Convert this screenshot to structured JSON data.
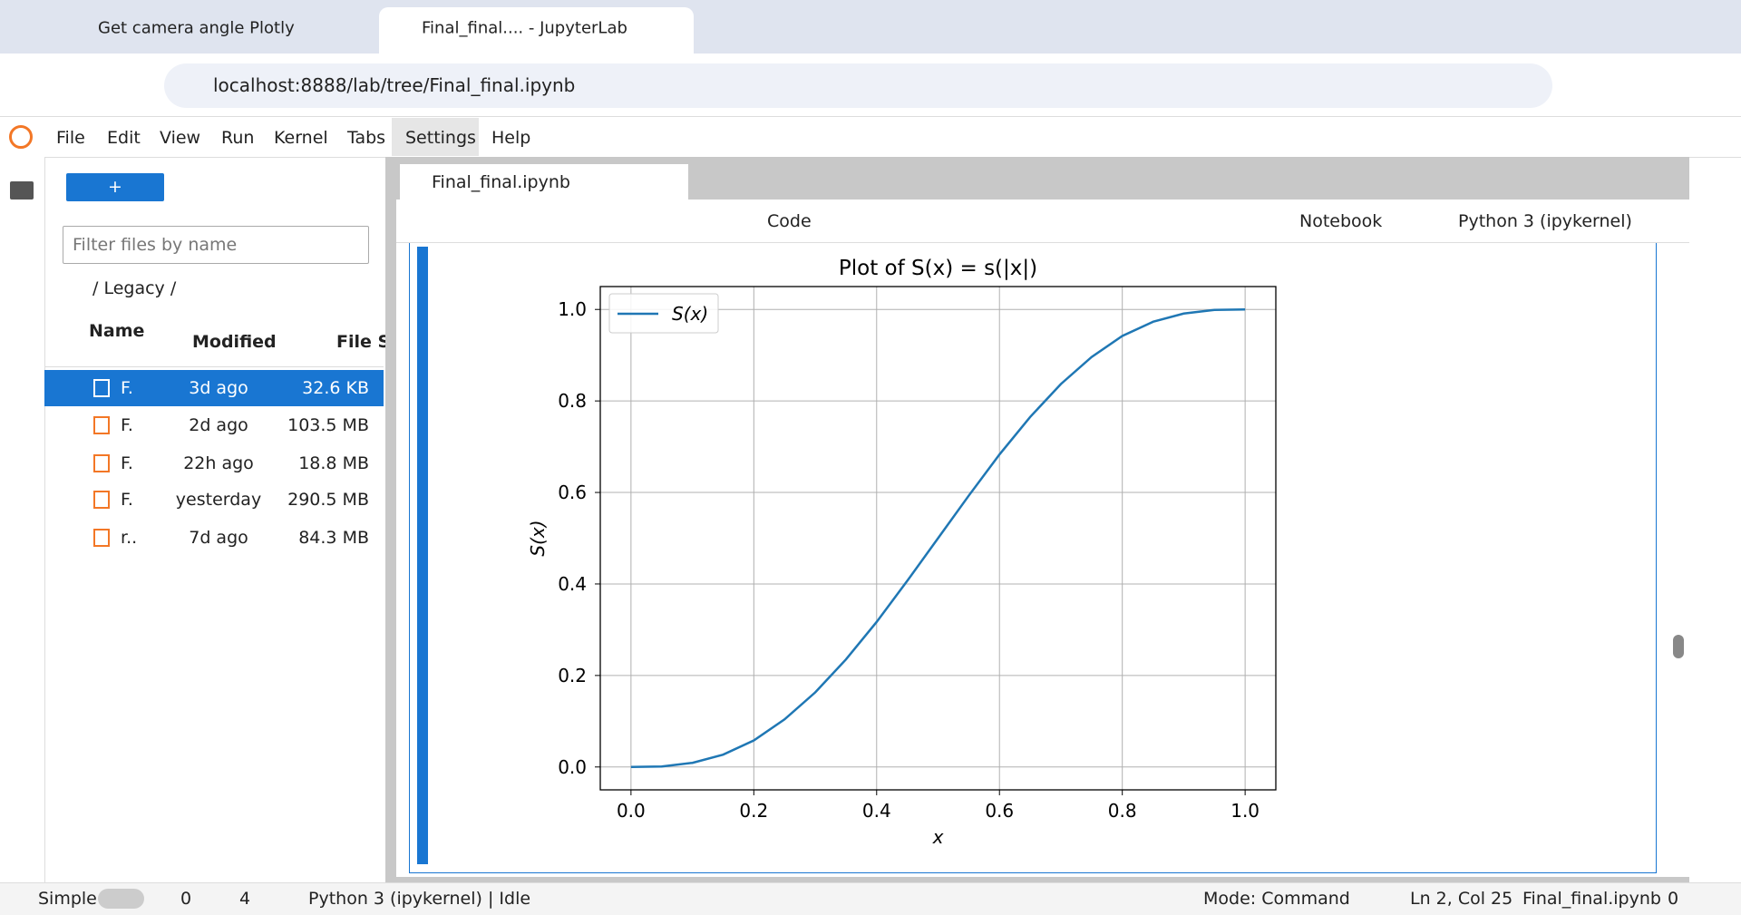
{
  "browser": {
    "tabs": [
      "Get camera angle Plotly",
      "Final_final.... - JupyterLab"
    ],
    "url": "localhost:8888/lab/tree/Final_final.ipynb"
  },
  "menu": [
    "File",
    "Edit",
    "View",
    "Run",
    "Kernel",
    "Tabs",
    "Settings",
    "Help"
  ],
  "file_browser": {
    "filter_placeholder": "Filter files by name",
    "breadcrumb": "/ Legacy /",
    "columns": [
      "Name",
      "Modified",
      "File Si"
    ],
    "rows": [
      [
        "F.",
        "3d ago",
        "32.6 KB"
      ],
      [
        "F.",
        "2d ago",
        "103.5 MB"
      ],
      [
        "F.",
        "22h ago",
        "18.8 MB"
      ],
      [
        "F.",
        "yesterday",
        "290.5 MB"
      ],
      [
        "r..",
        "7d ago",
        "84.3 MB"
      ]
    ]
  },
  "notebook": {
    "tab": "Final_final.ipynb",
    "cell_type": "Code",
    "notebook_label": "Notebook",
    "kernel": "Python 3 (ipykernel)"
  },
  "status": {
    "mode_label": "Simple",
    "terminals": "0",
    "kernels": "4",
    "kernel_status": "Python 3 (ipykernel) | Idle",
    "mode": "Mode: Command",
    "position": "Ln 2, Col 25",
    "file": "Final_final.ipynb",
    "notifications": "0"
  },
  "chart_data": {
    "type": "line",
    "title": "Plot of S(x) = s(|x|)",
    "x_label": "x",
    "y_label": "S(x)",
    "x": [
      0,
      0.05,
      0.1,
      0.15,
      0.2,
      0.25,
      0.3,
      0.35,
      0.4,
      0.45,
      0.5,
      0.55,
      0.6,
      0.65,
      0.7,
      0.75,
      0.8,
      0.85,
      0.9,
      0.95,
      1
    ],
    "series": [
      {
        "name": "S(x)",
        "color": "#1f77b4",
        "values": [
          0,
          0.001,
          0.009,
          0.027,
          0.058,
          0.104,
          0.163,
          0.235,
          0.317,
          0.407,
          0.5,
          0.593,
          0.683,
          0.765,
          0.837,
          0.896,
          0.942,
          0.973,
          0.991,
          0.999,
          1
        ]
      }
    ],
    "xlim": [
      -0.05,
      1.05
    ],
    "ylim": [
      -0.05,
      1.05
    ],
    "xticks": [
      {
        "value": 0,
        "label": "0.0"
      },
      0.2,
      0.4,
      0.6,
      0.8,
      {
        "value": 1,
        "label": "1.0"
      }
    ],
    "yticks": [
      {
        "value": 0,
        "label": "0.0"
      },
      0.2,
      0.4,
      0.6,
      0.8,
      {
        "value": 1,
        "label": "1.0"
      }
    ],
    "grid": true,
    "legend": "upper left"
  }
}
